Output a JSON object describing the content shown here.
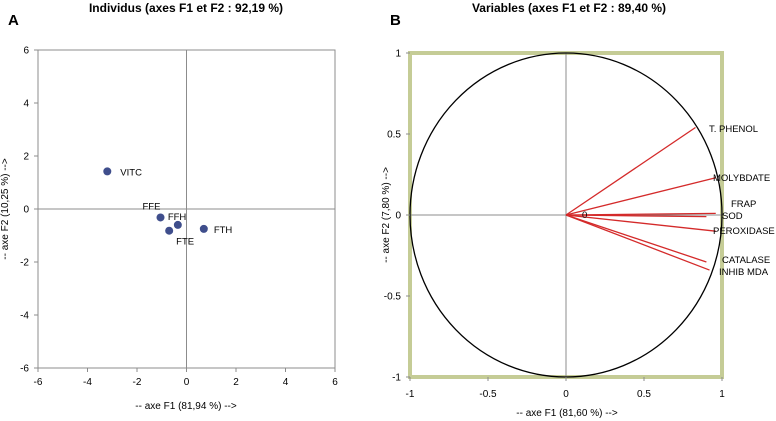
{
  "chart_data": [
    {
      "type": "scatter",
      "panel": "A",
      "title": "Individus (axes F1 et F2 : 92,19 %)",
      "xlabel": "-- axe F1 (81,94 %) -->",
      "ylabel": "-- axe F2 (10,25 %) -->",
      "xlim": [
        -6,
        6
      ],
      "ylim": [
        -6,
        6
      ],
      "xticks": [
        -6,
        -4,
        -2,
        0,
        2,
        4,
        6
      ],
      "yticks": [
        -6,
        -4,
        -2,
        0,
        2,
        4,
        6
      ],
      "grid": false,
      "marker_color": "#3f4e8c",
      "points": [
        {
          "label": "VITC",
          "x": -3.2,
          "y": 1.42
        },
        {
          "label": "FFE",
          "x": -1.05,
          "y": -0.32
        },
        {
          "label": "FTE",
          "x": -0.7,
          "y": -0.82
        },
        {
          "label": "FFH",
          "x": -0.35,
          "y": -0.6
        },
        {
          "label": "FTH",
          "x": 0.7,
          "y": -0.75
        }
      ]
    },
    {
      "type": "line",
      "panel": "B",
      "title": "Variables (axes F1 et F2 : 89,40 %)",
      "xlabel": "-- axe F1 (81,60 %) -->",
      "ylabel": "-- axe F2 (7,80 %) -->",
      "xlim": [
        -1,
        1
      ],
      "ylim": [
        -1,
        1
      ],
      "xticks": [
        "-1",
        "-0.5",
        "0",
        "0.5",
        "1"
      ],
      "yticks": [
        "1",
        "0.5",
        "0",
        "-0.5",
        "-1"
      ],
      "grid": false,
      "origin_label": "0",
      "vector_color": "#d42a2a",
      "frame_color": "#c5cc96",
      "vectors": [
        {
          "label": "T. PHENOL",
          "x": 0.83,
          "y": 0.54
        },
        {
          "label": "MOLYBDATE",
          "x": 0.96,
          "y": 0.23
        },
        {
          "label": "FRAP",
          "x": 0.96,
          "y": 0.01
        },
        {
          "label": "SOD",
          "x": 0.9,
          "y": -0.01
        },
        {
          "label": "PEROXIDASE",
          "x": 0.96,
          "y": -0.1
        },
        {
          "label": "CATALASE",
          "x": 0.9,
          "y": -0.29
        },
        {
          "label": "INHIB MDA",
          "x": 0.92,
          "y": -0.34
        }
      ]
    }
  ]
}
